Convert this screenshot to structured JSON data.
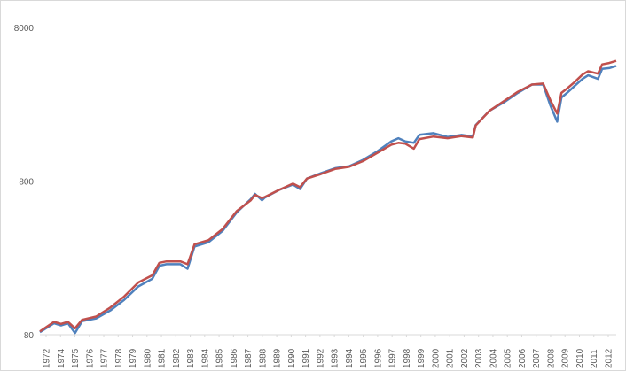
{
  "chart_data": {
    "type": "line",
    "title": "",
    "xlabel": "",
    "ylabel": "",
    "y_scale": "log",
    "ylim": [
      80,
      8000
    ],
    "y_ticks": [
      "80",
      "800",
      "8000"
    ],
    "y_tick_values": [
      80,
      800,
      8000
    ],
    "xlim": [
      1972,
      2013
    ],
    "x_ticks": [
      "1972",
      "1974",
      "1975",
      "1976",
      "1977",
      "1978",
      "1979",
      "1980",
      "1981",
      "1982",
      "1983",
      "1984",
      "1985",
      "1986",
      "1987",
      "1988",
      "1989",
      "1990",
      "1991",
      "1992",
      "1993",
      "1994",
      "1995",
      "1996",
      "1997",
      "1998",
      "1999",
      "2000",
      "2001",
      "2002",
      "2003",
      "2004",
      "2005",
      "2006",
      "2007",
      "2008",
      "2009",
      "2010",
      "2011",
      "2012"
    ],
    "grid": false,
    "legend": "none",
    "x": [
      1972,
      1973,
      1973.5,
      1974,
      1974.5,
      1975,
      1976,
      1977,
      1978,
      1979,
      1980,
      1980.5,
      1981,
      1982,
      1982.5,
      1983,
      1984,
      1985,
      1986,
      1987,
      1987.3,
      1987.8,
      1988,
      1989,
      1990,
      1990.5,
      1991,
      1992,
      1993,
      1994,
      1995,
      1996,
      1997,
      1997.5,
      1998,
      1998.6,
      1999,
      2000,
      2001,
      2002,
      2002.8,
      2003,
      2004,
      2005,
      2006,
      2007,
      2007.8,
      2008.3,
      2008.8,
      2009.1,
      2009.5,
      2010,
      2010.6,
      2011,
      2011.7,
      2012,
      2012.5,
      2013
    ],
    "series": [
      {
        "color": "#4f81bd",
        "values": [
          83,
          95,
          92,
          95,
          82,
          98,
          102,
          115,
          135,
          165,
          185,
          225,
          230,
          230,
          215,
          300,
          320,
          380,
          500,
          610,
          660,
          600,
          625,
          700,
          760,
          710,
          830,
          900,
          970,
          1000,
          1100,
          1250,
          1450,
          1520,
          1450,
          1420,
          1600,
          1640,
          1550,
          1600,
          1560,
          1850,
          2300,
          2600,
          3000,
          3400,
          3400,
          2500,
          1950,
          2800,
          3000,
          3300,
          3700,
          3900,
          3700,
          4300,
          4350,
          4500
        ]
      },
      {
        "color": "#c0504d",
        "values": [
          84,
          97,
          94,
          97,
          88,
          100,
          105,
          120,
          142,
          175,
          195,
          235,
          240,
          240,
          230,
          310,
          330,
          390,
          510,
          600,
          650,
          620,
          630,
          700,
          770,
          730,
          830,
          890,
          960,
          990,
          1080,
          1220,
          1380,
          1420,
          1400,
          1300,
          1500,
          1560,
          1520,
          1570,
          1540,
          1840,
          2300,
          2650,
          3050,
          3400,
          3450,
          2700,
          2200,
          3000,
          3200,
          3500,
          3950,
          4150,
          4000,
          4600,
          4700,
          4850
        ]
      }
    ]
  }
}
